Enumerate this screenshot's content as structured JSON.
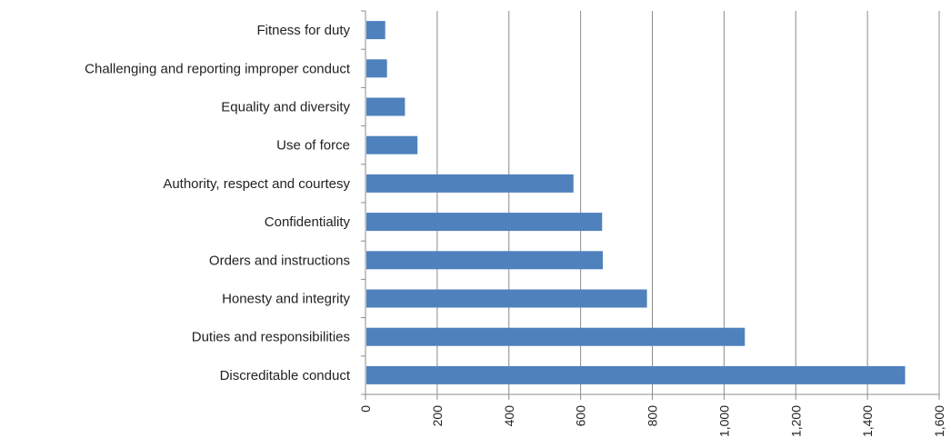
{
  "chart_data": {
    "type": "bar",
    "orientation": "horizontal",
    "title": "",
    "xlabel": "",
    "ylabel": "",
    "categories": [
      "Fitness for duty",
      "Challenging and reporting improper conduct",
      "Equality and diversity",
      "Use of force",
      "Authority, respect and courtesy",
      "Confidentiality",
      "Orders and instructions",
      "Honesty and integrity",
      "Duties and responsibilities",
      "Discreditable conduct"
    ],
    "values": [
      55,
      60,
      110,
      145,
      580,
      660,
      662,
      785,
      1058,
      1505
    ],
    "xlim": [
      0,
      1600
    ],
    "xticks": [
      0,
      200,
      400,
      600,
      800,
      1000,
      1200,
      1400,
      1600
    ],
    "xtick_labels": [
      "0",
      "200",
      "400",
      "600",
      "800",
      "1,000",
      "1,200",
      "1,400",
      "1,600"
    ],
    "grid": "vertical",
    "legend": "none",
    "bar_color": "#4f81bd"
  }
}
